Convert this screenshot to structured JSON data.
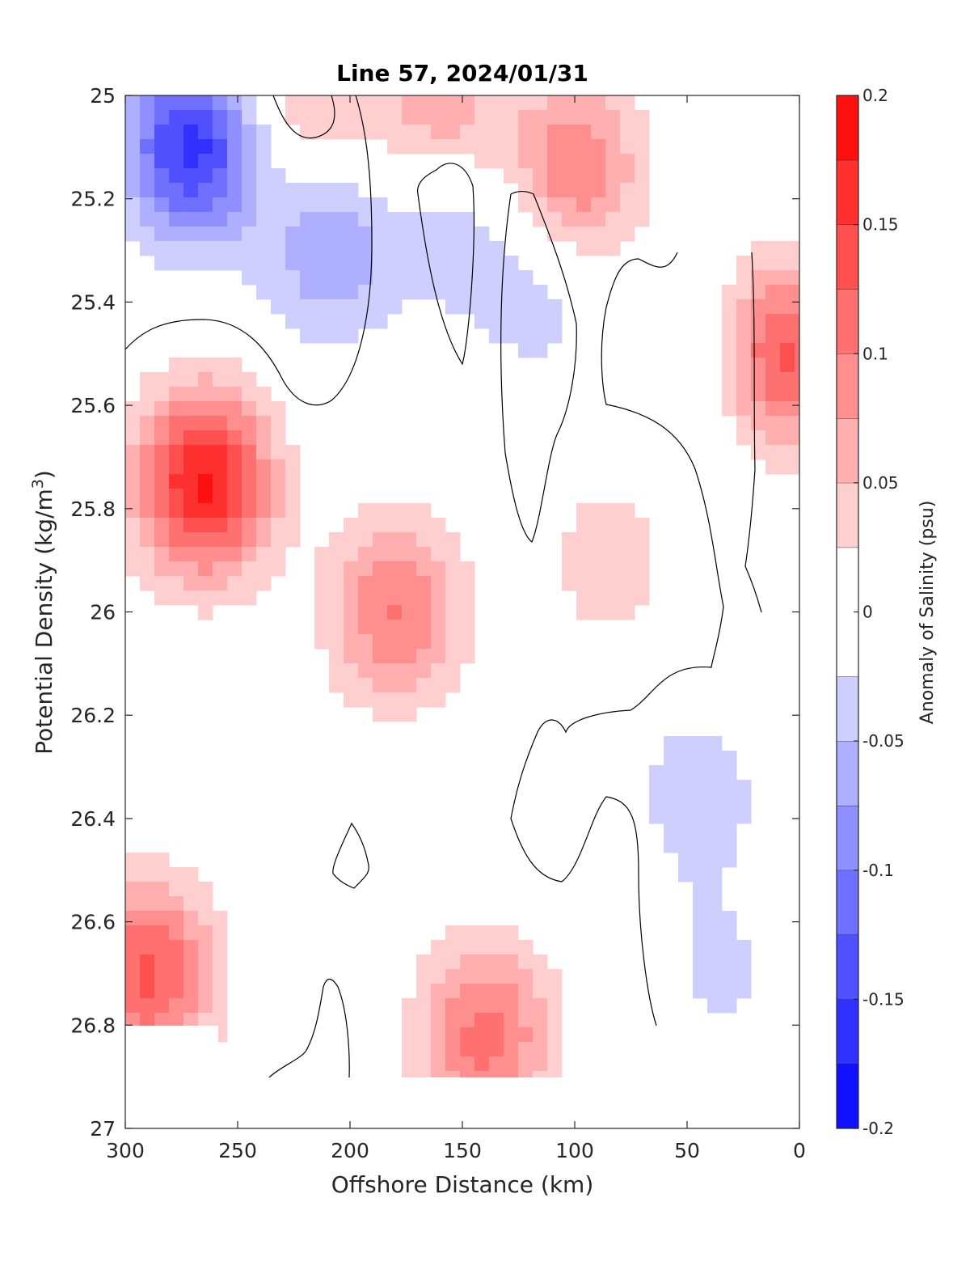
{
  "chart_data": {
    "type": "heatmap",
    "subtype": "filled-contour",
    "title": "Line 57, 2024/01/31",
    "xlabel": "Offshore Distance (km)",
    "ylabel_main": "Potential Density (kg/m",
    "ylabel_sup": "3",
    "ylabel_close": ")",
    "colorbar_label": "Anomaly of Salinity (psu)",
    "xlim": [
      0,
      300
    ],
    "x_reversed": true,
    "ylim": [
      25,
      27
    ],
    "y_reversed": true,
    "x_ticks": [
      "300",
      "250",
      "200",
      "150",
      "100",
      "50",
      "0"
    ],
    "x_tick_values": [
      300,
      250,
      200,
      150,
      100,
      50,
      0
    ],
    "y_ticks": [
      "25",
      "25.2",
      "25.4",
      "25.6",
      "25.8",
      "26",
      "26.2",
      "26.4",
      "26.6",
      "26.8",
      "27"
    ],
    "y_tick_values": [
      25,
      25.2,
      25.4,
      25.6,
      25.8,
      26,
      26.2,
      26.4,
      26.6,
      26.8,
      27
    ],
    "colorbar_ticks": [
      "0.2",
      "0.15",
      "0.1",
      "0.05",
      "0",
      "-0.05",
      "-0.1",
      "-0.15",
      "-0.2"
    ],
    "colorbar_tick_values": [
      0.2,
      0.15,
      0.1,
      0.05,
      0,
      -0.05,
      -0.1,
      -0.15,
      -0.2
    ],
    "clim": [
      -0.2,
      0.2
    ],
    "levels": [
      -0.2,
      -0.175,
      -0.15,
      -0.125,
      -0.1,
      -0.075,
      -0.05,
      -0.025,
      0.025,
      0.05,
      0.075,
      0.1,
      0.125,
      0.15,
      0.175,
      0.2
    ],
    "colors": {
      "neg_strong": "#0000ff",
      "positive_strong": "#ff0000",
      "zero": "#ffffff",
      "contour_line": "#000000"
    },
    "anomalies": [
      {
        "x": 270,
        "y": 25.1,
        "value": -0.16
      },
      {
        "x": 265,
        "y": 25.75,
        "value": 0.18
      },
      {
        "x": 180,
        "y": 26.0,
        "value": 0.1
      },
      {
        "x": 210,
        "y": 25.3,
        "value": -0.07
      },
      {
        "x": 100,
        "y": 25.15,
        "value": 0.1
      },
      {
        "x": 40,
        "y": 25.5,
        "value": -0.04
      },
      {
        "x": 8,
        "y": 25.5,
        "value": 0.14
      },
      {
        "x": 290,
        "y": 26.7,
        "value": 0.13
      },
      {
        "x": 140,
        "y": 26.82,
        "value": 0.11
      },
      {
        "x": 85,
        "y": 25.9,
        "value": 0.04
      },
      {
        "x": 45,
        "y": 26.35,
        "value": -0.04
      },
      {
        "x": 35,
        "y": 26.7,
        "value": -0.03
      },
      {
        "x": 155,
        "y": 25.25,
        "value": -0.04
      },
      {
        "x": 115,
        "y": 25.38,
        "value": -0.04
      },
      {
        "x": 160,
        "y": 25.02,
        "value": 0.07
      },
      {
        "x": 220,
        "y": 25.02,
        "value": 0.05
      }
    ]
  }
}
